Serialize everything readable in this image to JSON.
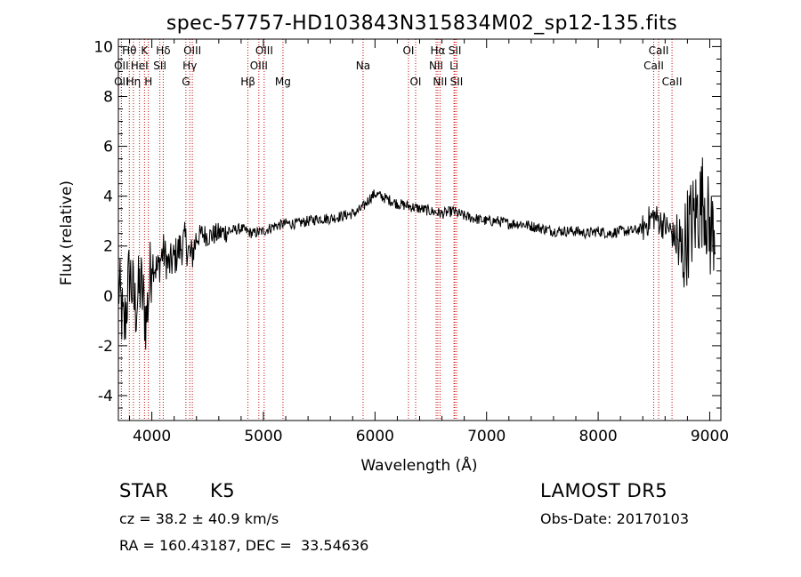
{
  "chart_data": {
    "type": "line",
    "title": "spec-57757-HD103843N315834M02_sp12-135.fits",
    "xlabel": "Wavelength (Å)",
    "ylabel": "Flux (relative)",
    "xlim": [
      3700,
      9100
    ],
    "ylim": [
      -5,
      10.3
    ],
    "xticks": [
      4000,
      5000,
      6000,
      7000,
      8000,
      9000
    ],
    "yticks": [
      -4,
      -2,
      0,
      2,
      4,
      6,
      8,
      10
    ],
    "grid": false,
    "legend": "none",
    "line_color": "#000000",
    "marker_color": "#cc0000",
    "series": [
      {
        "x": [
          3700,
          3750,
          3800,
          3850,
          3900,
          3950,
          4000,
          4050,
          4100,
          4150,
          4200,
          4250,
          4300,
          4350,
          4400,
          4450,
          4500,
          4600,
          4700,
          4800,
          4900,
          5000,
          5100,
          5200,
          5300,
          5400,
          5500,
          5600,
          5700,
          5800,
          5850,
          5900,
          5950,
          6000,
          6050,
          6100,
          6200,
          6300,
          6400,
          6500,
          6600,
          6700,
          6800,
          6900,
          7000,
          7100,
          7200,
          7300,
          7400,
          7500,
          7600,
          7700,
          7800,
          7900,
          8000,
          8100,
          8200,
          8300,
          8400,
          8450,
          8500,
          8550,
          8600,
          8650,
          8700,
          8750,
          8800,
          8850,
          8900,
          8950,
          9000,
          9050
        ],
        "y": [
          0.5,
          -1.5,
          1.0,
          -0.5,
          0.5,
          -1.0,
          1.5,
          1.0,
          1.8,
          1.2,
          1.5,
          1.9,
          2.2,
          1.5,
          2.3,
          2.5,
          2.4,
          2.5,
          2.6,
          2.7,
          2.5,
          2.6,
          2.8,
          2.9,
          2.9,
          3.0,
          3.1,
          3.1,
          3.2,
          3.3,
          3.4,
          3.6,
          3.9,
          4.1,
          4.0,
          3.9,
          3.7,
          3.6,
          3.5,
          3.4,
          3.3,
          3.4,
          3.2,
          3.1,
          3.0,
          3.0,
          2.9,
          2.9,
          2.8,
          2.7,
          2.6,
          2.6,
          2.6,
          2.5,
          2.6,
          2.5,
          2.6,
          2.6,
          2.7,
          3.0,
          3.2,
          3.0,
          2.8,
          2.6,
          2.2,
          1.5,
          2.5,
          3.0,
          3.5,
          4.0,
          2.5,
          2.8
        ]
      }
    ],
    "lines": [
      {
        "name": "Hθ",
        "x": 3798,
        "row": 1
      },
      {
        "name": "OII",
        "x": 3727,
        "row": 2
      },
      {
        "name": "OII",
        "x": 3727,
        "row": 3
      },
      {
        "name": "K",
        "x": 3934,
        "row": 1
      },
      {
        "name": "HeI",
        "x": 3889,
        "row": 2
      },
      {
        "name": "Hη",
        "x": 3835,
        "row": 3
      },
      {
        "name": "H",
        "x": 3969,
        "row": 3
      },
      {
        "name": "Hδ",
        "x": 4102,
        "row": 1
      },
      {
        "name": "SII",
        "x": 4072,
        "row": 2
      },
      {
        "name": "OIII",
        "x": 4363,
        "row": 1
      },
      {
        "name": "Hγ",
        "x": 4340,
        "row": 2
      },
      {
        "name": "G",
        "x": 4305,
        "row": 3
      },
      {
        "name": "OIII",
        "x": 5007,
        "row": 1
      },
      {
        "name": "OIII",
        "x": 4959,
        "row": 2
      },
      {
        "name": "Hβ",
        "x": 4861,
        "row": 3
      },
      {
        "name": "Mg",
        "x": 5175,
        "row": 3
      },
      {
        "name": "Na",
        "x": 5893,
        "row": 2
      },
      {
        "name": "OI",
        "x": 6300,
        "row": 1
      },
      {
        "name": "OI",
        "x": 6364,
        "row": 3
      },
      {
        "name": "Hα",
        "x": 6563,
        "row": 1
      },
      {
        "name": "NII",
        "x": 6548,
        "row": 2
      },
      {
        "name": "NII",
        "x": 6583,
        "row": 3
      },
      {
        "name": "SII",
        "x": 6716,
        "row": 1
      },
      {
        "name": "Li",
        "x": 6708,
        "row": 2
      },
      {
        "name": "SII",
        "x": 6731,
        "row": 3
      },
      {
        "name": "CaII",
        "x": 8542,
        "row": 1
      },
      {
        "name": "CaII",
        "x": 8498,
        "row": 2
      },
      {
        "name": "CaII",
        "x": 8662,
        "row": 3
      }
    ]
  },
  "info": {
    "object_class": "STAR",
    "subclass": "K5",
    "survey": "LAMOST DR5",
    "redshift": "cz = 38.2 ± 40.9 km/s",
    "obs_date": "Obs-Date: 20170103",
    "coords": "RA = 160.43187, DEC =  33.54636"
  }
}
